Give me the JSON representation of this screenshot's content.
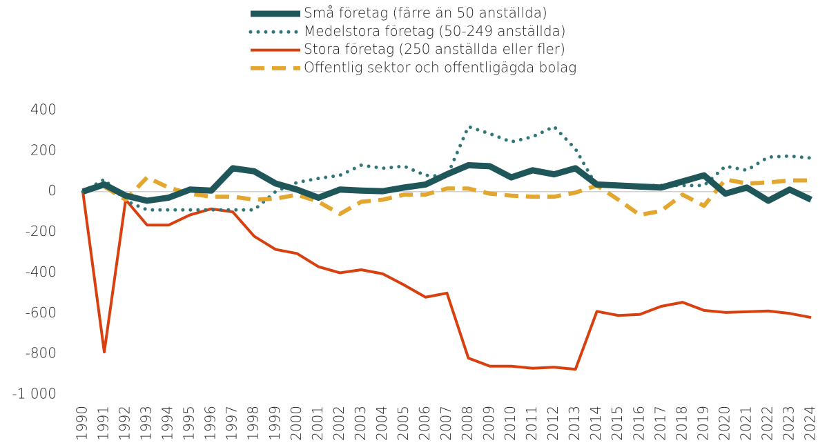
{
  "chart_data": {
    "type": "line",
    "categories": [
      "1990",
      "1991",
      "1992",
      "1993",
      "1994",
      "1995",
      "1996",
      "1997",
      "1998",
      "1999",
      "2000",
      "2001",
      "2002",
      "2003",
      "2004",
      "2005",
      "2006",
      "2007",
      "2008",
      "2009",
      "2010",
      "2011",
      "2012",
      "2013",
      "2014",
      "2015",
      "2016",
      "2017",
      "2018",
      "2019",
      "2020",
      "2021",
      "2022",
      "2023",
      "2024"
    ],
    "series": [
      {
        "name": "Små företag (färre än 50 anställda)",
        "color": "#1f5659",
        "style": "solid",
        "values": [
          0,
          35,
          -20,
          -45,
          -30,
          10,
          5,
          115,
          100,
          40,
          10,
          -30,
          10,
          5,
          2,
          20,
          35,
          85,
          130,
          125,
          70,
          105,
          85,
          115,
          35,
          30,
          25,
          20,
          50,
          80,
          -10,
          20,
          -45,
          10,
          -40
        ]
      },
      {
        "name": "Medelstora företag (50-249 anställda)",
        "color": "#2e7677",
        "style": "dotted",
        "values": [
          0,
          60,
          -45,
          -90,
          -90,
          -90,
          -90,
          -90,
          -90,
          0,
          45,
          65,
          80,
          130,
          115,
          125,
          80,
          75,
          320,
          285,
          245,
          270,
          320,
          210,
          25,
          30,
          30,
          30,
          30,
          30,
          125,
          105,
          170,
          175,
          165
        ]
      },
      {
        "name": "Stora företag (250 anställda eller fler)",
        "color": "#d9400f",
        "style": "solid",
        "values": [
          0,
          -790,
          -40,
          -165,
          -165,
          -115,
          -85,
          -100,
          -220,
          -285,
          -305,
          -370,
          -400,
          -385,
          -405,
          -460,
          -520,
          -500,
          -820,
          -860,
          -860,
          -870,
          -865,
          -875,
          -590,
          -610,
          -605,
          -565,
          -545,
          -585,
          -595,
          -592,
          -588,
          -600,
          -620
        ]
      },
      {
        "name": "Offentlig sektor och offentligägda bolag",
        "color": "#e3a72f",
        "style": "dashed",
        "values": [
          0,
          25,
          -40,
          70,
          20,
          -10,
          -25,
          -25,
          -40,
          -35,
          -15,
          -50,
          -110,
          -50,
          -40,
          -15,
          -15,
          15,
          15,
          -10,
          -20,
          -25,
          -25,
          -5,
          30,
          -40,
          -115,
          -95,
          -15,
          -70,
          60,
          40,
          45,
          55,
          55
        ]
      }
    ],
    "ylim": [
      -1000,
      400
    ],
    "yticks": [
      {
        "value": -1000,
        "label": "-1 000"
      },
      -800,
      -600,
      -400,
      -200,
      0,
      200,
      400
    ]
  }
}
